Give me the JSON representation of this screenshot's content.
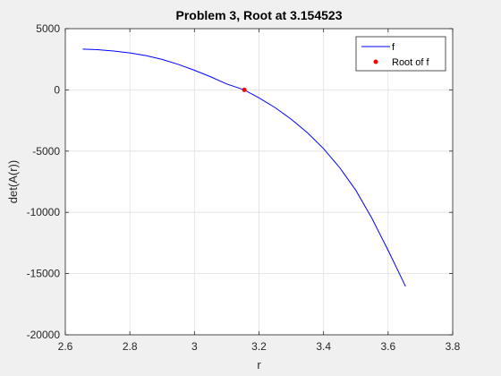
{
  "chart_data": {
    "type": "line",
    "title": "Problem 3, Root at 3.154523",
    "xlabel": "r",
    "ylabel": "det(A(r))",
    "xlim": [
      2.6,
      3.8
    ],
    "ylim": [
      -20000,
      5000
    ],
    "xticks": [
      2.6,
      2.8,
      3.0,
      3.2,
      3.4,
      3.6,
      3.8
    ],
    "xtick_labels": [
      "2.6",
      "2.8",
      "3",
      "3.2",
      "3.4",
      "3.6",
      "3.8"
    ],
    "yticks": [
      -20000,
      -15000,
      -10000,
      -5000,
      0,
      5000
    ],
    "ytick_labels": [
      "-20000",
      "-15000",
      "-10000",
      "-5000",
      "0",
      "5000"
    ],
    "grid": true,
    "legend_position": "top-right",
    "series": [
      {
        "name": "f",
        "kind": "line",
        "color": "#0000ff",
        "x": [
          2.654,
          2.7,
          2.75,
          2.8,
          2.85,
          2.9,
          2.95,
          3.0,
          3.05,
          3.1,
          3.154523,
          3.2,
          3.25,
          3.3,
          3.35,
          3.4,
          3.45,
          3.5,
          3.55,
          3.6,
          3.654
        ],
        "y": [
          3330,
          3280,
          3170,
          3020,
          2800,
          2490,
          2080,
          1600,
          1070,
          480,
          0,
          -650,
          -1450,
          -2400,
          -3500,
          -4800,
          -6350,
          -8200,
          -10500,
          -13100,
          -16050
        ]
      },
      {
        "name": "Root of f",
        "kind": "marker",
        "color": "#ff0000",
        "x": [
          3.154523
        ],
        "y": [
          0
        ]
      }
    ]
  }
}
